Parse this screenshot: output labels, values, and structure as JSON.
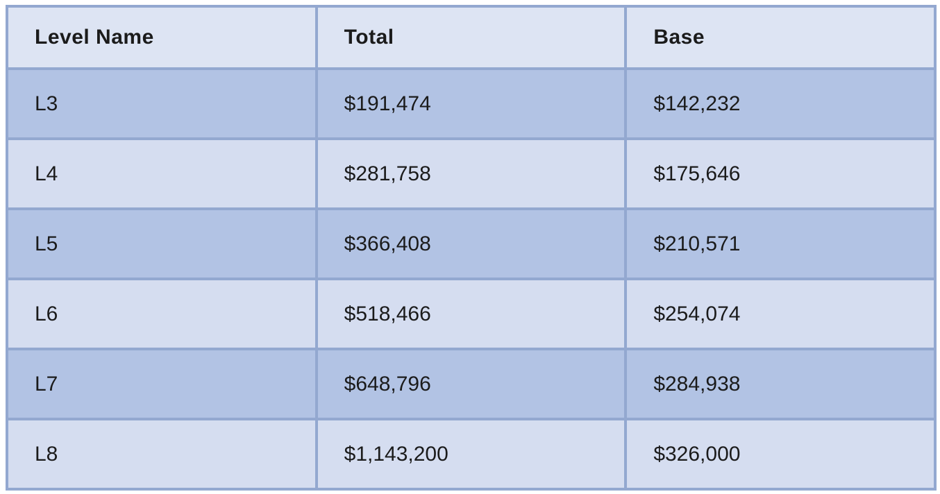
{
  "chart_data": {
    "type": "table",
    "columns": [
      "Level Name",
      "Total",
      "Base"
    ],
    "rows": [
      {
        "level": "L3",
        "total": "$191,474",
        "base": "$142,232"
      },
      {
        "level": "L4",
        "total": "$281,758",
        "base": "$175,646"
      },
      {
        "level": "L5",
        "total": "$366,408",
        "base": "$210,571"
      },
      {
        "level": "L6",
        "total": "$518,466",
        "base": "$254,074"
      },
      {
        "level": "L7",
        "total": "$648,796",
        "base": "$284,938"
      },
      {
        "level": "L8",
        "total": "$1,143,200",
        "base": "$326,000"
      }
    ],
    "layout": {
      "header_background": "#dde4f3",
      "row_dark_background": "#b2c3e4",
      "row_light_background": "#d5ddf0",
      "border_color": "#93a8d0",
      "outer_border_color": "#8095bf",
      "text_color": "#1b1b1b"
    }
  }
}
